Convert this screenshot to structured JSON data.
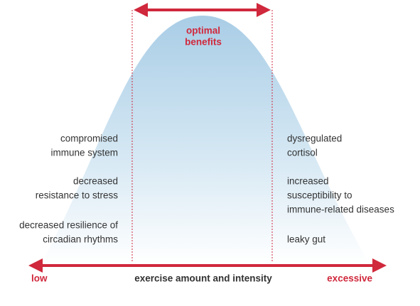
{
  "optimal": {
    "lines": [
      "optimal",
      "benefits"
    ]
  },
  "left_effects": [
    {
      "lines": [
        "compromised",
        "immune system"
      ]
    },
    {
      "lines": [
        "decreased",
        "resistance to stress"
      ]
    },
    {
      "lines": [
        "decreased resilience of",
        "circadian rhythms"
      ]
    }
  ],
  "right_effects": [
    {
      "lines": [
        "dysregulated",
        "cortisol"
      ]
    },
    {
      "lines": [
        "increased",
        "susceptibility to",
        "immune-related diseases"
      ]
    },
    {
      "lines": [
        "leaky gut"
      ]
    }
  ],
  "axis": {
    "low": "low",
    "title": "exercise amount and intensity",
    "high": "excessive"
  }
}
